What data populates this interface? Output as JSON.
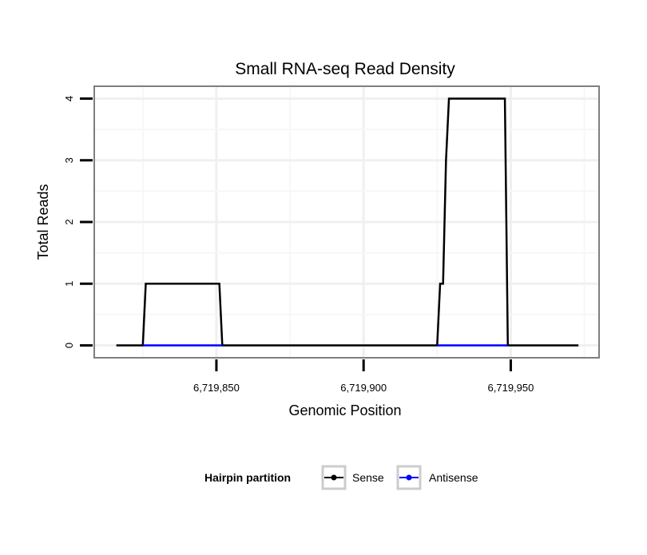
{
  "chart_data": {
    "type": "line",
    "title": "Small RNA-seq Read Density",
    "xlabel": "Genomic Position",
    "ylabel": "Total Reads",
    "xlim": [
      6719808.5,
      6719980
    ],
    "ylim": [
      -0.2,
      4.2
    ],
    "xticks": [
      6719850,
      6719900,
      6719950
    ],
    "xtick_labels": [
      "6,719,850",
      "6,719,900",
      "6,719,950"
    ],
    "yticks": [
      0,
      1,
      2,
      3,
      4
    ],
    "ytick_labels": [
      "0",
      "1",
      "2",
      "3",
      "4"
    ],
    "grid": true,
    "legend": {
      "title": "Hairpin partition",
      "placement": "bottom"
    },
    "series": [
      {
        "name": "Sense",
        "color": "#000000",
        "x": [
          6719816,
          6719825,
          6719826,
          6719851,
          6719852,
          6719925,
          6719926,
          6719927,
          6719928,
          6719929,
          6719948,
          6719949,
          6719973
        ],
        "y": [
          0,
          0,
          1,
          1,
          0,
          0,
          1,
          1,
          3,
          4,
          4,
          0,
          0
        ]
      },
      {
        "name": "Antisense",
        "color": "#0000ff",
        "segments": [
          {
            "x": [
              6719825,
              6719852
            ],
            "y": [
              0,
              0
            ]
          },
          {
            "x": [
              6719925,
              6719949
            ],
            "y": [
              0,
              0
            ]
          }
        ]
      }
    ]
  }
}
